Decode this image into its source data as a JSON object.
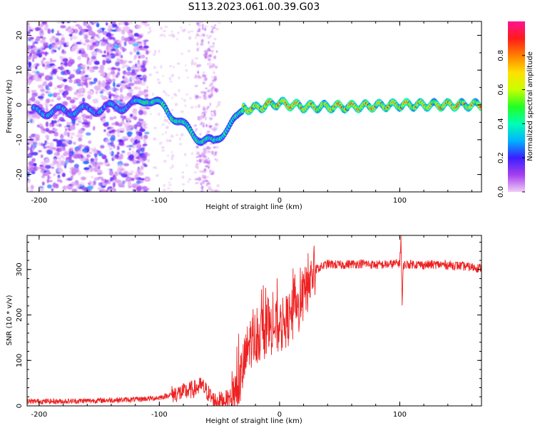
{
  "title": "S113.2023.061.00.39.G03",
  "chart_data": [
    {
      "type": "heatmap",
      "xlabel": "Height of straight line (km)",
      "ylabel": "Frequency (Hz)",
      "xlim": [
        -210,
        168
      ],
      "ylim": [
        -25,
        24
      ],
      "xticks": [
        -200,
        -100,
        0,
        100
      ],
      "yticks": [
        -20,
        -10,
        0,
        10,
        20
      ],
      "colorbar": {
        "label": "Normalized spectral amplitude",
        "range": [
          0.0,
          1.0
        ],
        "ticks": [
          "0.0",
          "0.2",
          "0.4",
          "0.6",
          "0.8"
        ],
        "colors": [
          "#f0ccf5",
          "#a53ff0",
          "#3a1fff",
          "#00b4ff",
          "#00ffb4",
          "#22ff22",
          "#c8ff00",
          "#ffe000",
          "#ff8000",
          "#ff1a1a",
          "#ff1493"
        ]
      },
      "ridge": {
        "x": [
          -200,
          -160,
          -120,
          -110,
          -95,
          -80,
          -65,
          -55,
          -45,
          -35,
          -30,
          -20,
          -10,
          0,
          20,
          60,
          100,
          168
        ],
        "y": [
          -2,
          -1.5,
          0,
          2,
          -1,
          -6,
          -10,
          -11,
          -7,
          -4,
          -1,
          -1,
          0,
          0.5,
          -0.5,
          -0.5,
          0,
          0
        ]
      }
    },
    {
      "type": "line",
      "xlabel": "Height of straight line (km)",
      "ylabel": "SNR (10 * v/v)",
      "xlim": [
        -210,
        168
      ],
      "ylim": [
        0,
        375
      ],
      "xticks": [
        -200,
        -100,
        0,
        100
      ],
      "yticks": [
        0,
        100,
        200,
        300
      ],
      "color": "#ee2020",
      "series": [
        {
          "x": [
            -210,
            -180,
            -150,
            -120,
            -100,
            -90,
            -80,
            -70,
            -65,
            -60,
            -55,
            -50,
            -45,
            -40,
            -35,
            -30,
            -25,
            -20,
            -15,
            -10,
            -5,
            0,
            5,
            10,
            15,
            20,
            25,
            30,
            40,
            50,
            60,
            70,
            80,
            90,
            100,
            101,
            102,
            103,
            110,
            120,
            130,
            140,
            150,
            160,
            168
          ],
          "y": [
            10,
            10,
            12,
            14,
            18,
            25,
            30,
            38,
            45,
            30,
            12,
            12,
            14,
            20,
            40,
            85,
            140,
            150,
            160,
            165,
            175,
            170,
            185,
            195,
            210,
            240,
            275,
            300,
            312,
            310,
            312,
            313,
            310,
            311,
            314,
            375,
            220,
            310,
            312,
            310,
            311,
            310,
            308,
            305,
            303
          ]
        }
      ]
    }
  ]
}
